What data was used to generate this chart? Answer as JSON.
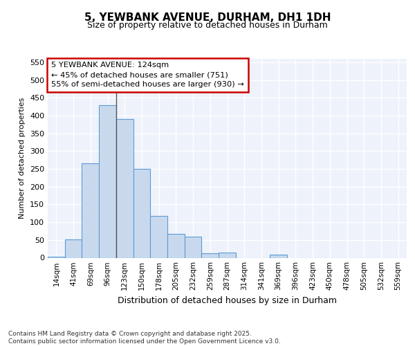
{
  "title": "5, YEWBANK AVENUE, DURHAM, DH1 1DH",
  "subtitle": "Size of property relative to detached houses in Durham",
  "xlabel": "Distribution of detached houses by size in Durham",
  "ylabel": "Number of detached properties",
  "bar_color": "#c9d9ed",
  "bar_edge_color": "#5b9bd5",
  "categories": [
    "14sqm",
    "41sqm",
    "69sqm",
    "96sqm",
    "123sqm",
    "150sqm",
    "178sqm",
    "205sqm",
    "232sqm",
    "259sqm",
    "287sqm",
    "314sqm",
    "341sqm",
    "369sqm",
    "396sqm",
    "423sqm",
    "450sqm",
    "478sqm",
    "505sqm",
    "532sqm",
    "559sqm"
  ],
  "values": [
    2,
    51,
    265,
    430,
    390,
    250,
    117,
    68,
    60,
    13,
    14,
    0,
    0,
    8,
    0,
    0,
    0,
    0,
    0,
    0,
    0
  ],
  "ylim": [
    0,
    560
  ],
  "yticks": [
    0,
    50,
    100,
    150,
    200,
    250,
    300,
    350,
    400,
    450,
    500,
    550
  ],
  "annotation_line1": "5 YEWBANK AVENUE: 124sqm",
  "annotation_line2": "← 45% of detached houses are smaller (751)",
  "annotation_line3": "55% of semi-detached houses are larger (930) →",
  "annotation_box_color": "#ffffff",
  "annotation_box_edge": "#cc0000",
  "vline_position": 3.5,
  "footer": "Contains HM Land Registry data © Crown copyright and database right 2025.\nContains public sector information licensed under the Open Government Licence v3.0.",
  "background_color": "#eef2fb",
  "grid_color": "#ffffff",
  "fig_background": "#ffffff"
}
